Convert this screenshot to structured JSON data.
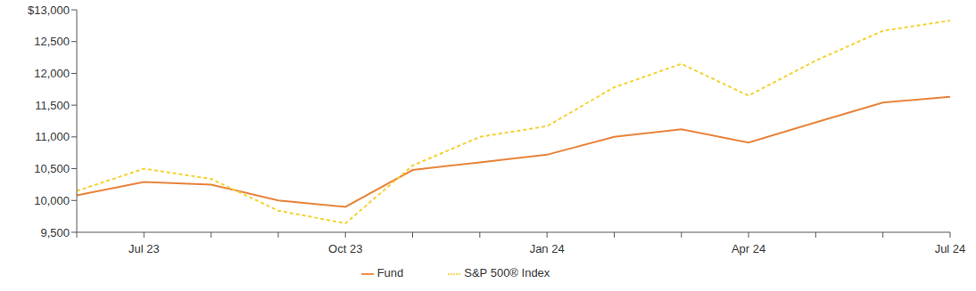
{
  "chart_data": {
    "type": "line",
    "categories": [
      null,
      "Jul 23",
      null,
      null,
      "Oct 23",
      null,
      null,
      "Jan 24",
      null,
      null,
      "Apr 24",
      null,
      null,
      "Jul 24"
    ],
    "series": [
      {
        "name": "Fund",
        "color": "#e8833a",
        "line_style": "solid",
        "values": [
          10080,
          10290,
          10250,
          10000,
          9900,
          10480,
          10600,
          10720,
          11000,
          11120,
          10910,
          11230,
          11540,
          11630
        ]
      },
      {
        "name": "S&P 500® Index",
        "color": "#f5d130",
        "line_style": "dashed",
        "values": [
          10150,
          10500,
          10340,
          9840,
          9640,
          10550,
          11000,
          11170,
          11780,
          12150,
          11650,
          12200,
          12670,
          12830
        ]
      }
    ],
    "ylim": [
      9500,
      13000
    ],
    "yticks": [
      {
        "value": 9500,
        "label": "9,500"
      },
      {
        "value": 10000,
        "label": "10,000"
      },
      {
        "value": 10500,
        "label": "10,500"
      },
      {
        "value": 11000,
        "label": "11,000"
      },
      {
        "value": 11500,
        "label": "11,500"
      },
      {
        "value": 12000,
        "label": "12,000"
      },
      {
        "value": 12500,
        "label": "12,500"
      },
      {
        "value": 13000,
        "label": "$13,000"
      }
    ],
    "grid": false,
    "legend": "bottom"
  }
}
